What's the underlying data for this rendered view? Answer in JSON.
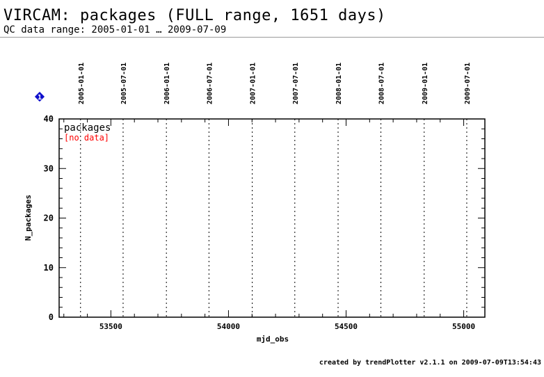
{
  "header": {
    "title": "VIRCAM: packages (FULL range, 1651 days)",
    "subtitle": "QC data range: 2005-01-01 … 2009-07-09"
  },
  "footer": {
    "credit": "created by trendPlotter v2.1.1 on 2009-07-09T13:54:43"
  },
  "marker": {
    "label": "1",
    "color": "#1010cc",
    "icon": "diamond-badge-icon"
  },
  "chart_data": {
    "type": "scatter",
    "xlabel": "mjd_obs",
    "ylabel": "N_packages",
    "xlim": [
      53280,
      55090
    ],
    "ylim": [
      0,
      40
    ],
    "x_ticks": [
      53500,
      54000,
      54500,
      55000
    ],
    "y_ticks": [
      0,
      10,
      20,
      30,
      40
    ],
    "date_lines": [
      {
        "label": "2005-01-01",
        "mjd": 53371
      },
      {
        "label": "2005-07-01",
        "mjd": 53552
      },
      {
        "label": "2006-01-01",
        "mjd": 53736
      },
      {
        "label": "2006-07-01",
        "mjd": 53917
      },
      {
        "label": "2007-01-01",
        "mjd": 54101
      },
      {
        "label": "2007-07-01",
        "mjd": 54282
      },
      {
        "label": "2008-01-01",
        "mjd": 54466
      },
      {
        "label": "2008-07-01",
        "mjd": 54648
      },
      {
        "label": "2009-01-01",
        "mjd": 54832
      },
      {
        "label": "2009-07-01",
        "mjd": 55013
      }
    ],
    "series": [
      {
        "name": "packages",
        "values": []
      }
    ],
    "annotation": "[no data]",
    "annotation_color": "#ff0000",
    "grid": false
  }
}
